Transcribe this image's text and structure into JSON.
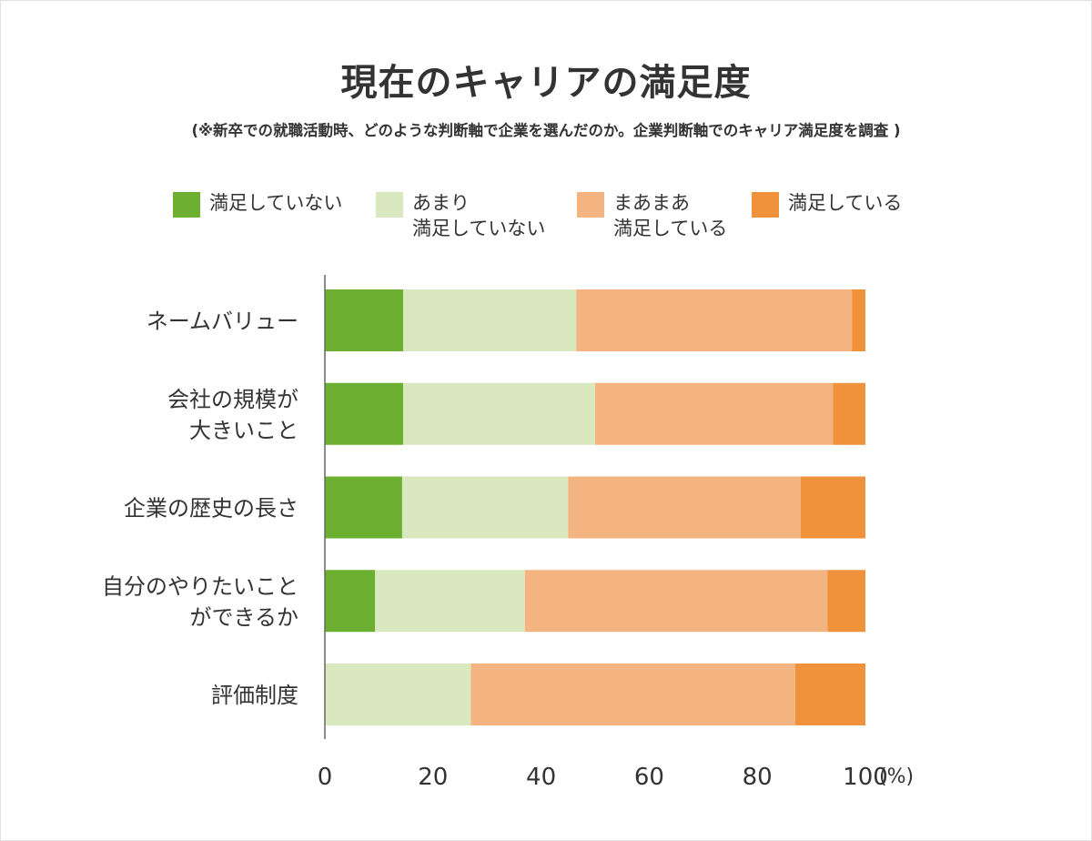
{
  "chart_data": {
    "type": "bar",
    "orientation": "horizontal",
    "stacked": true,
    "title": "現在のキャリアの満足度",
    "subtitle": "(※新卒での就職活動時、どのような判断軸で企業を選んだのか。企業判断軸でのキャリア満足度を調査 )",
    "unit": "(%)",
    "xlim": [
      0,
      100
    ],
    "xticks": [
      "0",
      "20",
      "40",
      "60",
      "80",
      "100"
    ],
    "grid": false,
    "legend_position": "top",
    "categories": [
      "ネームバリュー",
      "会社の規模が\n大きいこと",
      "企業の歴史の長さ",
      "自分のやりたいこと\nができるか",
      "評価制度"
    ],
    "series": [
      {
        "name": "満足していない",
        "color": "#6daf31",
        "values": [
          14.5,
          14.5,
          14.3,
          9.3,
          0
        ]
      },
      {
        "name": "あまり\n満足していない",
        "color": "#dae8bf",
        "values": [
          32.0,
          35.5,
          30.7,
          27.7,
          27.0
        ]
      },
      {
        "name": "まあまあ\n満足している",
        "color": "#f4b482",
        "values": [
          51.0,
          44.0,
          43.0,
          56.0,
          60.0
        ]
      },
      {
        "name": "満足している",
        "color": "#f0913c",
        "values": [
          2.5,
          6.0,
          12.0,
          7.0,
          13.0
        ]
      }
    ]
  }
}
